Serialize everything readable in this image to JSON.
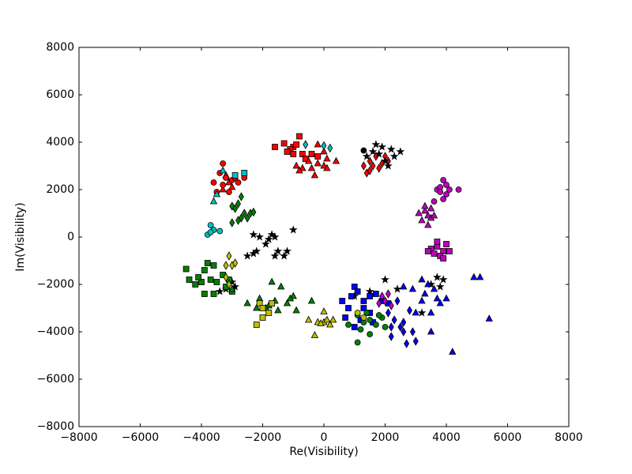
{
  "chart_data": {
    "type": "scatter",
    "x_label": "Re(Visibility)",
    "y_label": "Im(Visibility)",
    "xlim": [
      -8000,
      8000
    ],
    "ylim": [
      -8000,
      8000
    ],
    "xticks": [
      {
        "value": -8000,
        "label": "−8000"
      },
      {
        "value": -6000,
        "label": "−6000"
      },
      {
        "value": -4000,
        "label": "−4000"
      },
      {
        "value": -2000,
        "label": "−2000"
      },
      0,
      2000,
      4000,
      6000,
      8000
    ],
    "yticks": [
      {
        "value": -8000,
        "label": "−8000"
      },
      {
        "value": -6000,
        "label": "−6000"
      },
      {
        "value": -4000,
        "label": "−4000"
      },
      {
        "value": -2000,
        "label": "−2000"
      },
      0,
      2000,
      4000,
      6000,
      8000
    ],
    "series": [
      {
        "color": "#ff0000",
        "marker": "square",
        "x": [
          -1000,
          -800,
          -900,
          -1300,
          -1100,
          -700,
          -400,
          -1600,
          -1000,
          -600,
          -200,
          -1200
        ],
        "y": [
          3800,
          4250,
          3900,
          3950,
          3700,
          3500,
          3500,
          3800,
          3500,
          3300,
          3400,
          3600
        ]
      },
      {
        "color": "#ff0000",
        "marker": "triangle",
        "x": [
          -900,
          -700,
          -400,
          -200,
          0,
          100,
          -300,
          0,
          100,
          400,
          -500,
          -200,
          -800,
          -3100,
          -3300,
          -3200,
          -3000
        ],
        "y": [
          3000,
          2900,
          2900,
          3100,
          3000,
          2900,
          2600,
          3600,
          3300,
          3200,
          3200,
          3900,
          2800,
          2300,
          2000,
          2600,
          2100
        ]
      },
      {
        "color": "#00bfbf",
        "marker": "diamond",
        "x": [
          0,
          200,
          -600
        ],
        "y": [
          3850,
          3750,
          3900
        ]
      },
      {
        "color": "#ff0000",
        "marker": "diamond",
        "x": [
          1300,
          1400,
          1500,
          1700,
          1900,
          2100,
          1600,
          1800,
          2000,
          1500
        ],
        "y": [
          3000,
          2700,
          3200,
          3400,
          3100,
          3200,
          3000,
          2900,
          3400,
          2800
        ]
      },
      {
        "color": "#000000",
        "marker": "star",
        "x": [
          1700,
          1900,
          2200,
          2500,
          2300,
          1800,
          2000,
          2100,
          1600,
          1400,
          -2300,
          -2100,
          -1800,
          -1600,
          -1900,
          -2200,
          -1500,
          -1200,
          -1300,
          -1600,
          -2500,
          -2300,
          -1000,
          -1700,
          -3400,
          -3200,
          -2900,
          -3000,
          2000,
          1500,
          3500,
          3700,
          3800,
          3200,
          1000,
          2400,
          3900
        ],
        "y": [
          3900,
          3800,
          3700,
          3600,
          3400,
          3500,
          3200,
          3000,
          3600,
          3400,
          100,
          0,
          -100,
          0,
          -300,
          -600,
          -600,
          -600,
          -800,
          -800,
          -800,
          -700,
          300,
          100,
          -2300,
          -2200,
          -2100,
          -1900,
          -1800,
          -2300,
          -2000,
          -1700,
          -2100,
          -3200,
          -2500,
          -2200,
          -1800
        ]
      },
      {
        "color": "#000000",
        "marker": "circle",
        "x": [
          1300
        ],
        "y": [
          3650
        ]
      },
      {
        "color": "#bf00bf",
        "marker": "circle",
        "x": [
          3900,
          4000,
          3700,
          3800,
          4100,
          4400,
          4000,
          3900,
          3600,
          3800
        ],
        "y": [
          2400,
          2200,
          2000,
          2100,
          2000,
          2000,
          1800,
          1600,
          1500,
          1900
        ]
      },
      {
        "color": "#bf00bf",
        "marker": "triangle",
        "x": [
          3100,
          3300,
          3400,
          3500,
          3200,
          3400,
          3500,
          3300,
          3600
        ],
        "y": [
          1000,
          1100,
          900,
          800,
          700,
          500,
          1200,
          1300,
          900
        ]
      },
      {
        "color": "#bf00bf",
        "marker": "square",
        "x": [
          3500,
          3700,
          3900,
          3600,
          3800,
          4000,
          3700,
          4100,
          3400,
          3900
        ],
        "y": [
          -500,
          -400,
          -600,
          -700,
          -800,
          -300,
          -200,
          -600,
          -600,
          -900
        ]
      },
      {
        "color": "#ff0000",
        "marker": "circle",
        "x": [
          -3300,
          -3400,
          -3200,
          -3600,
          -3500,
          -3000,
          -2800,
          -2600,
          -3100,
          -3300,
          -2900
        ],
        "y": [
          3100,
          2700,
          2500,
          2300,
          1900,
          2400,
          2300,
          2500,
          1900,
          2200,
          2500
        ]
      },
      {
        "color": "#00bfbf",
        "marker": "square",
        "x": [
          -2900,
          -2600
        ],
        "y": [
          2600,
          2700
        ]
      },
      {
        "color": "#00bfbf",
        "marker": "triangle",
        "x": [
          -3500,
          -3600,
          -3300
        ],
        "y": [
          1800,
          1500,
          2800
        ]
      },
      {
        "color": "#00bfbf",
        "marker": "circle",
        "x": [
          -3800,
          -3700,
          -3600,
          -3400,
          -3700
        ],
        "y": [
          100,
          500,
          300,
          250,
          200
        ]
      },
      {
        "color": "#008000",
        "marker": "diamond",
        "x": [
          -2700,
          -2800,
          -2900,
          -3000,
          -2600,
          -2500,
          -2700,
          -2400,
          -2300,
          -2800,
          -3000
        ],
        "y": [
          1700,
          1400,
          1200,
          1300,
          1000,
          800,
          800,
          1000,
          1050,
          700,
          600
        ]
      },
      {
        "color": "#008000",
        "marker": "square",
        "x": [
          -4500,
          -4400,
          -4200,
          -4000,
          -3900,
          -3800,
          -3700,
          -3600,
          -3900,
          -3500,
          -3300,
          -3200,
          -3100,
          -3000,
          -4100,
          -3600
        ],
        "y": [
          -1350,
          -1800,
          -2000,
          -1900,
          -1400,
          -1100,
          -1800,
          -2400,
          -2400,
          -1900,
          -1600,
          -2100,
          -1800,
          -2300,
          -1700,
          -1200
        ]
      },
      {
        "color": "#bfbf00",
        "marker": "diamond",
        "x": [
          -3100,
          -3000,
          -3200,
          -2900,
          -3200,
          -3100
        ],
        "y": [
          -800,
          -1200,
          -1200,
          -1100,
          -1700,
          -2000
        ]
      },
      {
        "color": "#008000",
        "marker": "triangle",
        "x": [
          -3000,
          -2500,
          -2100,
          -1800,
          -1600,
          -1500,
          -1200,
          -1000,
          -900,
          -1700,
          -1400,
          -1100,
          -2200,
          -1900,
          -400
        ],
        "y": [
          -2200,
          -2800,
          -2600,
          -2900,
          -2700,
          -3100,
          -2800,
          -2500,
          -3100,
          -1900,
          -2100,
          -2600,
          -3000,
          -3000,
          -2700
        ]
      },
      {
        "color": "#bfbf00",
        "marker": "square",
        "x": [
          -2100,
          -2000,
          -1800,
          -1700,
          -2200,
          -2000
        ],
        "y": [
          -2800,
          -3000,
          -3200,
          -2800,
          -3700,
          -3400
        ]
      },
      {
        "color": "#bfbf00",
        "marker": "triangle",
        "x": [
          -500,
          -200,
          0,
          100,
          200,
          300,
          -100,
          -300,
          0
        ],
        "y": [
          -3500,
          -3600,
          -3600,
          -3500,
          -3700,
          -3500,
          -3650,
          -4150,
          -3150
        ]
      },
      {
        "color": "#0000ff",
        "marker": "square",
        "x": [
          700,
          800,
          1000,
          1100,
          1300,
          1500,
          1700,
          1900,
          1200,
          1500,
          1000,
          1600,
          1300,
          600,
          2100,
          900
        ],
        "y": [
          -3400,
          -3000,
          -2100,
          -2300,
          -2700,
          -2500,
          -2400,
          -2700,
          -3500,
          -3200,
          -3800,
          -3600,
          -3000,
          -2700,
          -2800,
          -2500
        ]
      },
      {
        "color": "#0000ff",
        "marker": "diamond",
        "x": [
          2100,
          2300,
          2500,
          2600,
          2200,
          2700,
          2800,
          2400,
          2200,
          2600,
          3000,
          2900
        ],
        "y": [
          -3200,
          -3500,
          -3800,
          -4000,
          -4200,
          -4500,
          -3100,
          -2700,
          -3800,
          -3600,
          -4400,
          -4000
        ]
      },
      {
        "color": "#0000ff",
        "marker": "triangle",
        "x": [
          2600,
          2900,
          3200,
          3400,
          3600,
          3700,
          3200,
          3500,
          3800,
          4000,
          3500,
          4200,
          5400,
          4900,
          5100,
          3000,
          3300
        ],
        "y": [
          -2100,
          -2200,
          -1800,
          -2000,
          -2200,
          -2600,
          -2700,
          -3200,
          -2800,
          -2600,
          -4000,
          -4850,
          -3450,
          -1700,
          -1700,
          -3200,
          -2400
        ]
      },
      {
        "color": "#008000",
        "marker": "circle",
        "x": [
          1100,
          1300,
          1500,
          1700,
          1900,
          1200,
          800,
          1100,
          1500,
          1800,
          2000,
          1400
        ],
        "y": [
          -3300,
          -3600,
          -3500,
          -3700,
          -3400,
          -3900,
          -3700,
          -4450,
          -4100,
          -3300,
          -3800,
          -3200
        ]
      },
      {
        "color": "#bf00bf",
        "marker": "diamond",
        "x": [
          1900,
          2000,
          2200,
          1800,
          2100
        ],
        "y": [
          -2500,
          -2700,
          -2900,
          -2800,
          -2400
        ]
      },
      {
        "color": "#bfbf00",
        "marker": "circle",
        "x": [
          1100,
          1300
        ],
        "y": [
          -3200,
          -3400
        ]
      }
    ]
  }
}
